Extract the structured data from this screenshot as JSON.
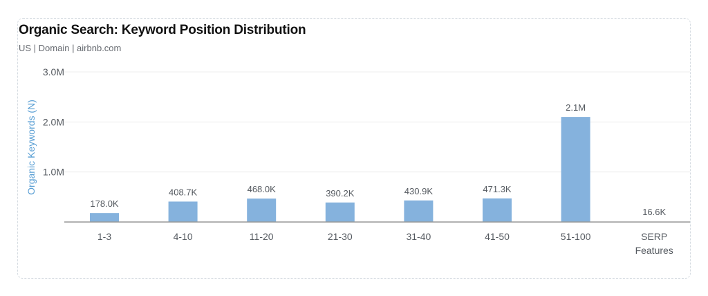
{
  "header": {
    "title": "Organic Search: Keyword Position Distribution",
    "subtitle": "US | Domain | airbnb.com"
  },
  "colors": {
    "bar": "#85b2dd",
    "axis_label": "#5a9fd4",
    "grid": "#ececec",
    "baseline": "#999999"
  },
  "chart_data": {
    "type": "bar",
    "title": "Organic Search: Keyword Position Distribution",
    "subtitle": "US | Domain | airbnb.com",
    "xlabel": "",
    "ylabel": "Organic Keywords (N)",
    "ylim": [
      0,
      3000000
    ],
    "yticks": [
      {
        "value": 1000000,
        "label": "1.0M"
      },
      {
        "value": 2000000,
        "label": "2.0M"
      },
      {
        "value": 3000000,
        "label": "3.0M"
      }
    ],
    "grid": true,
    "categories": [
      "1-3",
      "4-10",
      "11-20",
      "21-30",
      "31-40",
      "41-50",
      "51-100",
      "SERP Features"
    ],
    "values": [
      178000,
      408700,
      468000,
      390200,
      430900,
      471300,
      2100000,
      16600
    ],
    "value_labels": [
      "178.0K",
      "408.7K",
      "468.0K",
      "390.2K",
      "430.9K",
      "471.3K",
      "2.1M",
      "16.6K"
    ],
    "bars_drawn": [
      true,
      true,
      true,
      true,
      true,
      true,
      true,
      false
    ]
  }
}
